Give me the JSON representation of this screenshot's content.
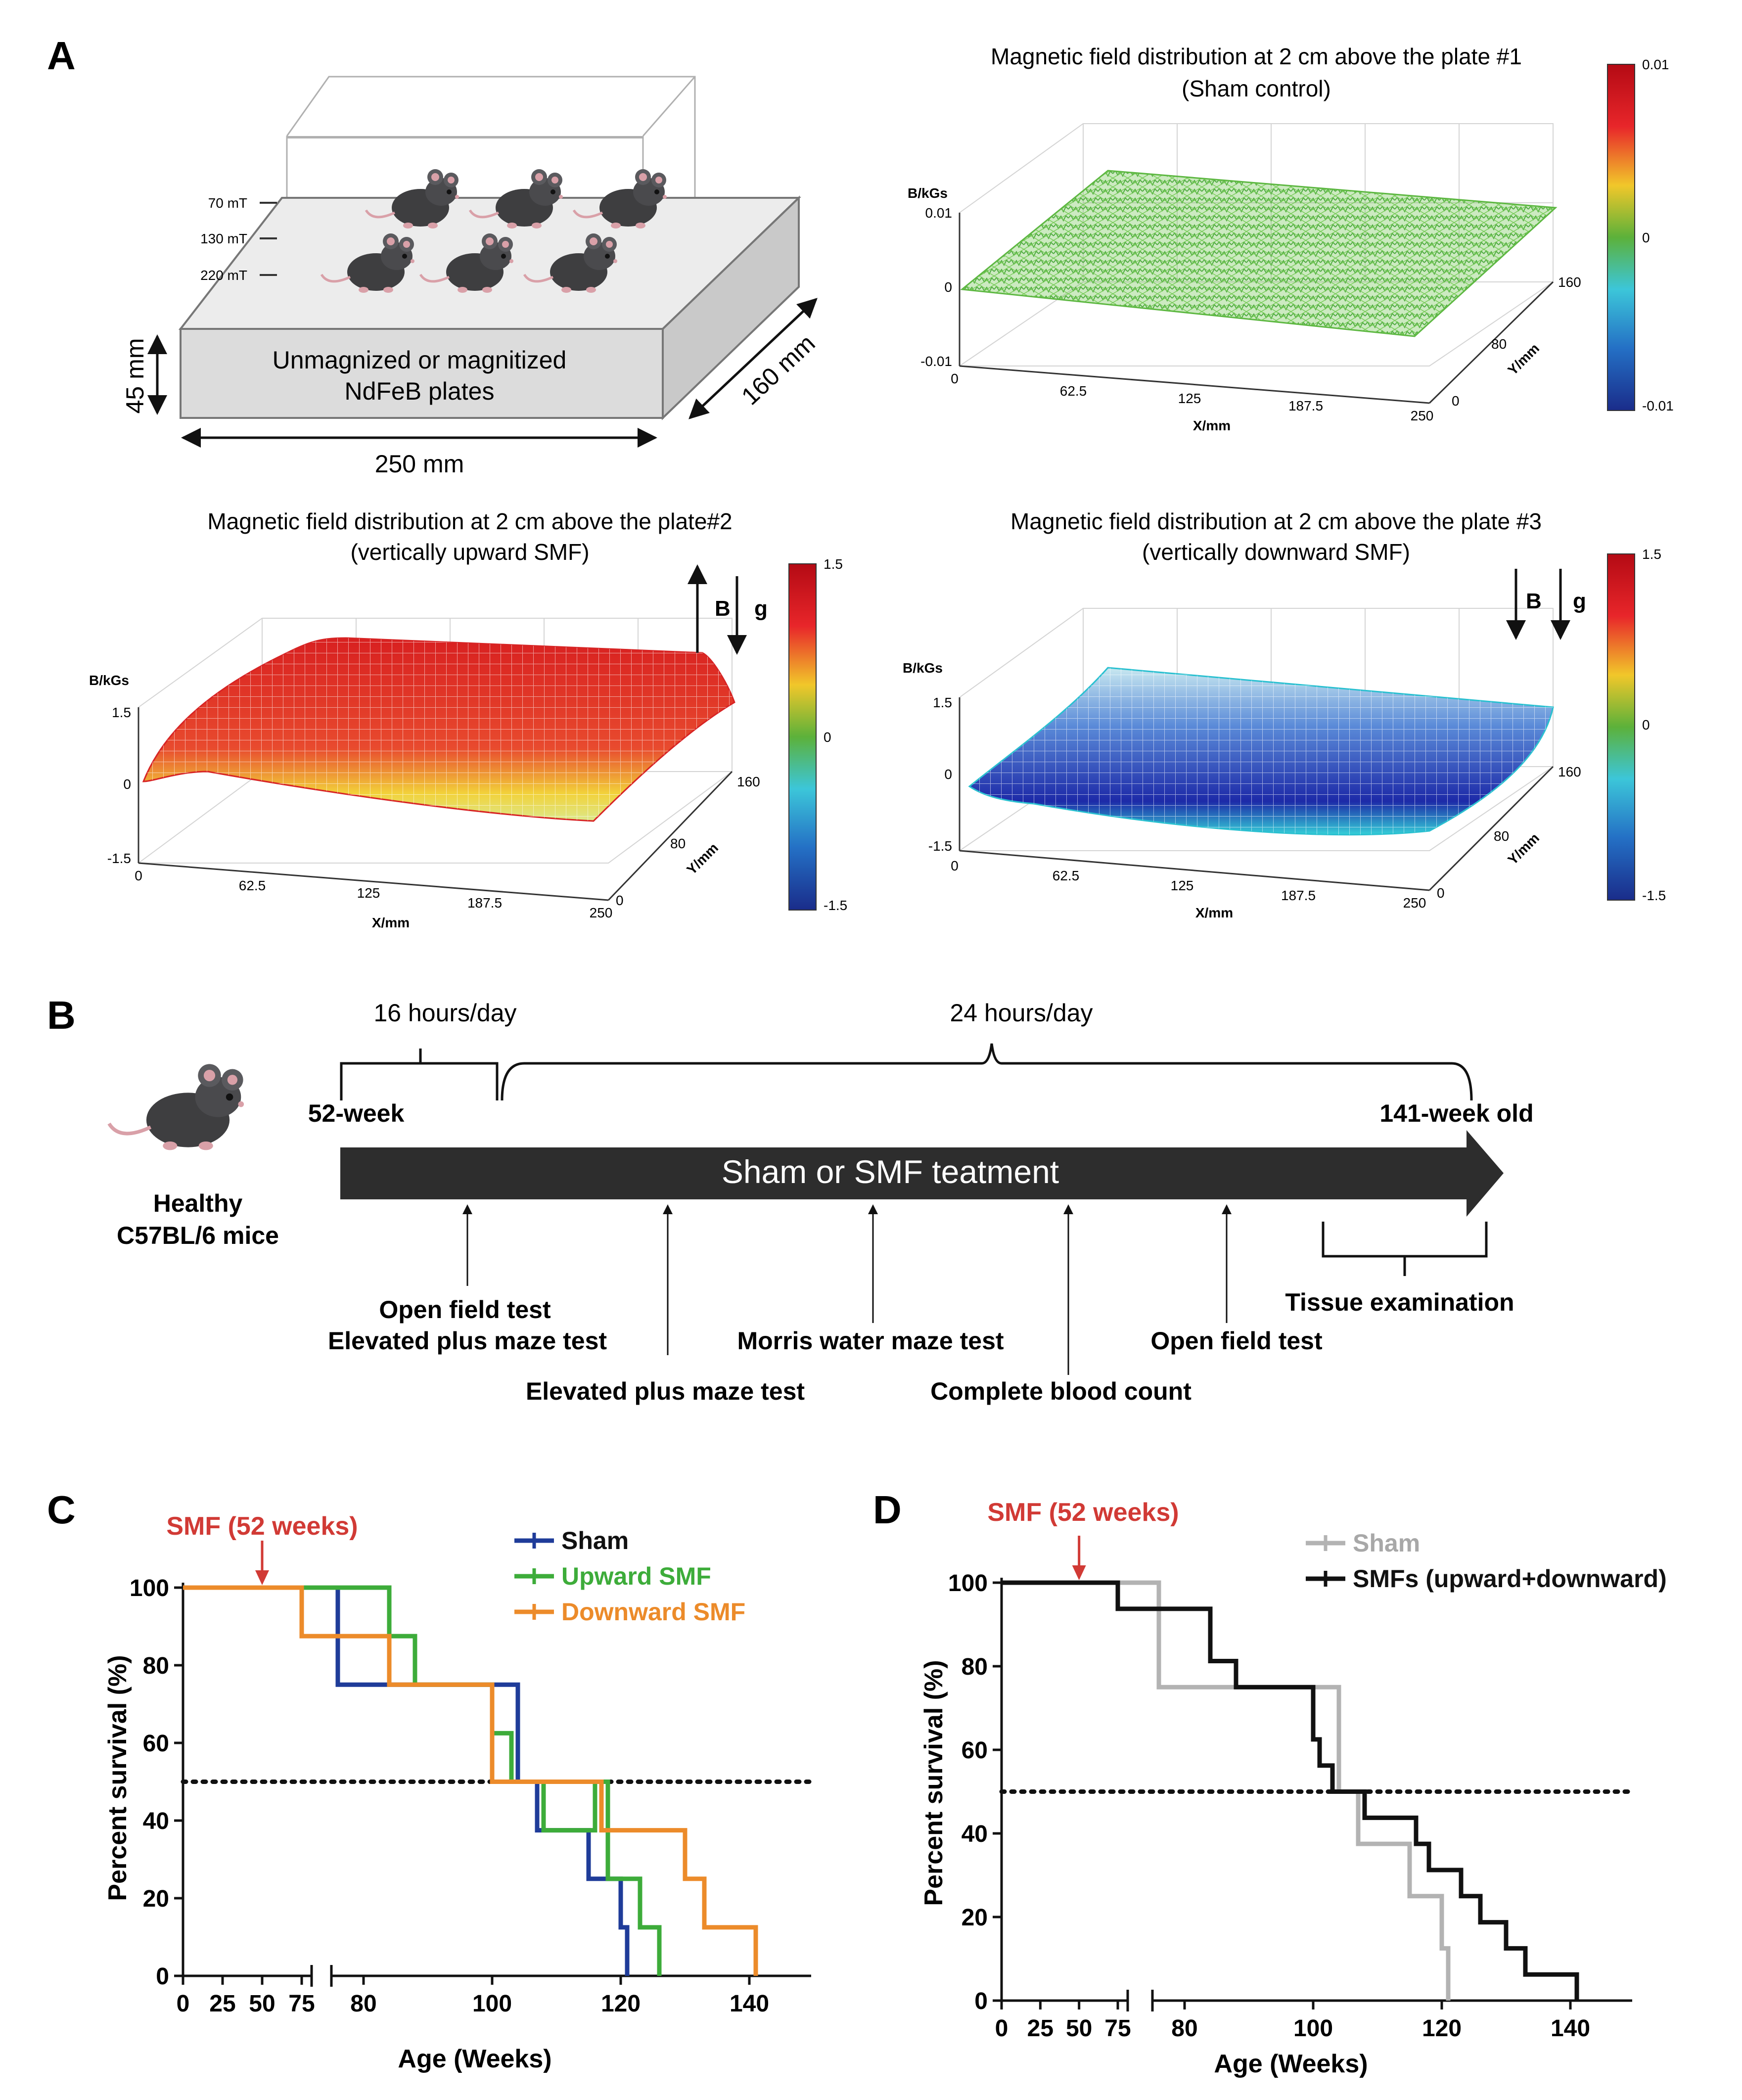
{
  "panels": {
    "a": "A",
    "b": "B",
    "c": "C",
    "d": "D"
  },
  "panel_a": {
    "box": {
      "label_line1": "Unmagnized or magnitized",
      "label_line2": "NdFeB plates",
      "height": "45 mm",
      "depth": "160 mm",
      "width": "250 mm",
      "field_levels": [
        "70 mT",
        "130 mT",
        "220 mT"
      ]
    },
    "plot1": {
      "title_line1": "Magnetic field distribution at 2 cm above the plate #1",
      "title_line2": "(Sham control)",
      "zlabel": "B/kGs",
      "zticks": [
        "0.01",
        "0",
        "-0.01"
      ],
      "xticks": [
        "0",
        "62.5",
        "125",
        "187.5",
        "250"
      ],
      "xlabel": "X/mm",
      "yticks": [
        "0",
        "80",
        "160"
      ],
      "ylabel": "Y/mm",
      "colorbar": [
        "0.01",
        "0",
        "-0.01"
      ]
    },
    "plot2": {
      "title_line1": "Magnetic field distribution at 2 cm above the plate#2",
      "title_line2": "(vertically upward SMF)",
      "zlabel": "B/kGs",
      "zticks": [
        "1.5",
        "0",
        "-1.5"
      ],
      "xticks": [
        "0",
        "62.5",
        "125",
        "187.5",
        "250"
      ],
      "xlabel": "X/mm",
      "yticks": [
        "0",
        "80",
        "160"
      ],
      "ylabel": "Y/mm",
      "colorbar": [
        "1.5",
        "0",
        "-1.5"
      ],
      "arrow_b": "B",
      "arrow_g": "g"
    },
    "plot3": {
      "title_line1": "Magnetic field distribution at 2 cm above the plate #3",
      "title_line2": "(vertically downward SMF)",
      "zlabel": "B/kGs",
      "zticks": [
        "1.5",
        "0",
        "-1.5"
      ],
      "xticks": [
        "0",
        "62.5",
        "125",
        "187.5",
        "250"
      ],
      "xlabel": "X/mm",
      "yticks": [
        "0",
        "80",
        "160"
      ],
      "ylabel": "Y/mm",
      "colorbar": [
        "1.5",
        "0",
        "-1.5"
      ],
      "arrow_b": "B",
      "arrow_g": "g"
    }
  },
  "panel_b": {
    "mice_line1": "Healthy",
    "mice_line2": "C57BL/6 mice",
    "phase1": "16 hours/day",
    "phase2": "24 hours/day",
    "start": "52-week",
    "end": "141-week old",
    "arrow_label": "Sham or SMF teatment",
    "tests": {
      "t1_line1": "Open field test",
      "t1_line2": "Elevated plus maze test",
      "t2": "Elevated plus maze test",
      "t3": "Morris water maze test",
      "t4": "Complete blood count",
      "t5": "Open field test",
      "t6": "Tissue examination"
    }
  },
  "chart_data": [
    {
      "type": "line",
      "panel": "C",
      "title": "",
      "annotation": "SMF (52 weeks)",
      "annotation_x": 50,
      "xlabel": "Age (Weeks)",
      "ylabel": "Percent survival (%)",
      "xticks_left": [
        "0",
        "25",
        "50",
        "75"
      ],
      "xticks_right": [
        "80",
        "100",
        "120",
        "140"
      ],
      "yticks": [
        "0",
        "20",
        "40",
        "60",
        "80",
        "100"
      ],
      "ylim": [
        0,
        100
      ],
      "reference_line": 50,
      "series": [
        {
          "name": "Sham",
          "color": "#1f3c99",
          "x": [
            0,
            76,
            76,
            104,
            104,
            107,
            107,
            115,
            115,
            120,
            120,
            121,
            121
          ],
          "y": [
            100,
            100,
            75,
            75,
            50,
            50,
            37.5,
            37.5,
            25,
            25,
            12.5,
            12.5,
            0
          ]
        },
        {
          "name": "Upward SMF",
          "color": "#3dac3a",
          "x": [
            0,
            84,
            84,
            88,
            88,
            100,
            100,
            103,
            103,
            108,
            108,
            116,
            116,
            118,
            118,
            123,
            123,
            126,
            126
          ],
          "y": [
            100,
            100,
            87.5,
            87.5,
            75,
            75,
            62.5,
            62.5,
            50,
            50,
            37.5,
            37.5,
            50,
            50,
            25,
            25,
            12.5,
            12.5,
            0
          ]
        },
        {
          "name": "Downward SMF",
          "color": "#ec8b2a",
          "x": [
            0,
            75,
            75,
            84,
            84,
            100,
            100,
            117,
            117,
            130,
            130,
            133,
            133,
            141,
            141
          ],
          "y": [
            100,
            100,
            87.5,
            87.5,
            75,
            75,
            50,
            50,
            37.5,
            37.5,
            25,
            25,
            12.5,
            12.5,
            0
          ]
        }
      ]
    },
    {
      "type": "line",
      "panel": "D",
      "title": "",
      "annotation": "SMF (52 weeks)",
      "annotation_x": 50,
      "xlabel": "Age (Weeks)",
      "ylabel": "Percent survival (%)",
      "xticks_left": [
        "0",
        "25",
        "50",
        "75"
      ],
      "xticks_right": [
        "80",
        "100",
        "120",
        "140"
      ],
      "yticks": [
        "0",
        "20",
        "40",
        "60",
        "80",
        "100"
      ],
      "ylim": [
        0,
        100
      ],
      "reference_line": 50,
      "series": [
        {
          "name": "Sham",
          "color": "#b3b3b3",
          "x": [
            0,
            76,
            76,
            104,
            104,
            107,
            107,
            115,
            115,
            120,
            120,
            121,
            121
          ],
          "y": [
            100,
            100,
            75,
            75,
            50,
            50,
            37.5,
            37.5,
            25,
            25,
            12.5,
            12.5,
            0
          ]
        },
        {
          "name": "SMFs (upward+downward)",
          "color": "#111111",
          "x": [
            0,
            75,
            75,
            84,
            84,
            88,
            88,
            100,
            100,
            101,
            101,
            103,
            103,
            108,
            108,
            116,
            116,
            118,
            118,
            123,
            123,
            126,
            126,
            130,
            130,
            133,
            133,
            141,
            141
          ],
          "y": [
            100,
            100,
            93.75,
            93.75,
            81.25,
            81.25,
            75,
            75,
            62.5,
            62.5,
            56.25,
            56.25,
            50,
            50,
            43.75,
            43.75,
            37.5,
            37.5,
            31.25,
            31.25,
            25,
            25,
            18.75,
            18.75,
            12.5,
            12.5,
            6.25,
            6.25,
            0
          ]
        }
      ]
    }
  ]
}
